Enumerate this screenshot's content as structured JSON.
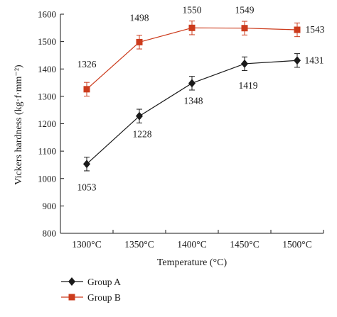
{
  "chart_data": {
    "type": "line",
    "xlabel": "Temperature (°C)",
    "ylabel": "Vickers hardness (kg·f·mm⁻²)",
    "categories": [
      "1300°C",
      "1350°C",
      "1400°C",
      "1450°C",
      "1500°C"
    ],
    "ylim": [
      800,
      1600
    ],
    "yticks": [
      800,
      900,
      1000,
      1100,
      1200,
      1300,
      1400,
      1500,
      1600
    ],
    "legend_position": "bottom-left",
    "grid": false,
    "series": [
      {
        "name": "Group A",
        "color": "#1a1a1a",
        "marker": "diamond",
        "values": [
          1053,
          1228,
          1348,
          1419,
          1431
        ],
        "labels": [
          "1053",
          "1228",
          "1348",
          "1419",
          "1431"
        ],
        "error": [
          25,
          25,
          25,
          25,
          25
        ]
      },
      {
        "name": "Group B",
        "color": "#cc3b1c",
        "marker": "square",
        "values": [
          1326,
          1498,
          1550,
          1549,
          1543
        ],
        "labels": [
          "1326",
          "1498",
          "1550",
          "1549",
          "1543"
        ],
        "error": [
          25,
          25,
          25,
          25,
          25
        ]
      }
    ]
  }
}
